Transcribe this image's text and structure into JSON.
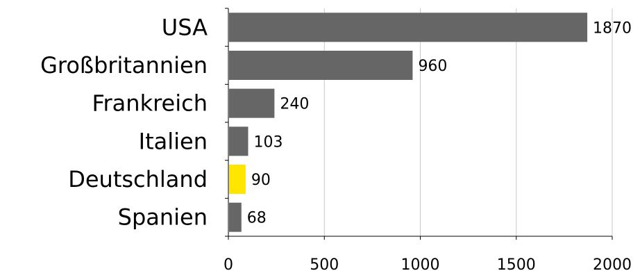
{
  "chart_data": {
    "type": "bar",
    "orientation": "horizontal",
    "categories": [
      "USA",
      "Großbritannien",
      "Frankreich",
      "Italien",
      "Deutschland",
      "Spanien"
    ],
    "values": [
      1870,
      960,
      240,
      103,
      90,
      68
    ],
    "value_labels": [
      "1870",
      "960",
      "240",
      "103",
      "90",
      "68"
    ],
    "highlight": "Deutschland",
    "colors": {
      "bar": "#666666",
      "highlight": "#ffe600",
      "grid": "#c8c8c8",
      "axis": "#000000"
    },
    "xlim": [
      0,
      2000
    ],
    "xticks": [
      0,
      500,
      1000,
      1500,
      2000
    ],
    "xtick_labels": [
      "0",
      "500",
      "1000",
      "1500",
      "2000"
    ],
    "grid": true,
    "legend": "none",
    "title": "",
    "xlabel": "",
    "ylabel": ""
  }
}
